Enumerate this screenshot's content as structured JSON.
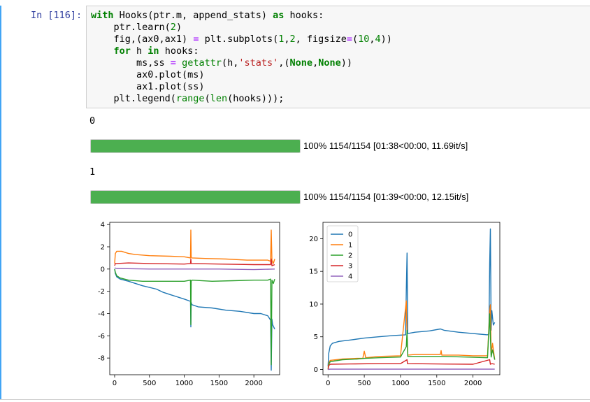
{
  "cell": {
    "prompt": "In [116]:",
    "code_lines": [
      [
        [
          "kw",
          "with"
        ],
        [
          "p",
          " Hooks(ptr.m, append_stats) "
        ],
        [
          "kw",
          "as"
        ],
        [
          "p",
          " hooks:"
        ]
      ],
      [
        [
          "p",
          "    ptr.learn("
        ],
        [
          "num",
          "2"
        ],
        [
          "p",
          ")"
        ]
      ],
      [
        [
          "p",
          "    fig,(ax0,ax1) "
        ],
        [
          "op",
          "="
        ],
        [
          "p",
          " plt.subplots("
        ],
        [
          "num",
          "1"
        ],
        [
          "p",
          ","
        ],
        [
          "num",
          "2"
        ],
        [
          "p",
          ", figsize"
        ],
        [
          "op",
          "="
        ],
        [
          "p",
          "("
        ],
        [
          "num",
          "10"
        ],
        [
          "p",
          ","
        ],
        [
          "num",
          "4"
        ],
        [
          "p",
          "))"
        ]
      ],
      [
        [
          "p",
          "    "
        ],
        [
          "kw",
          "for"
        ],
        [
          "p",
          " h "
        ],
        [
          "kw",
          "in"
        ],
        [
          "p",
          " hooks:"
        ]
      ],
      [
        [
          "p",
          "        ms,ss "
        ],
        [
          "op",
          "="
        ],
        [
          "p",
          " "
        ],
        [
          "bi",
          "getattr"
        ],
        [
          "p",
          "(h,"
        ],
        [
          "str",
          "'stats'"
        ],
        [
          "p",
          ",("
        ],
        [
          "kw",
          "None"
        ],
        [
          "p",
          ","
        ],
        [
          "kw",
          "None"
        ],
        [
          "p",
          "))"
        ]
      ],
      [
        [
          "p",
          "        ax0.plot(ms)"
        ]
      ],
      [
        [
          "p",
          "        ax1.plot(ss)"
        ]
      ],
      [
        [
          "p",
          "    plt.legend("
        ],
        [
          "bi",
          "range"
        ],
        [
          "p",
          "("
        ],
        [
          "bi",
          "len"
        ],
        [
          "p",
          "(hooks)));"
        ]
      ]
    ]
  },
  "outputs": {
    "epoch0_label": "0",
    "progress0": {
      "fraction": 1.0,
      "label": "100% 1154/1154 [01:38<00:00, 11.69it/s]"
    },
    "epoch1_label": "1",
    "progress1": {
      "fraction": 1.0,
      "label": "100% 1154/1154 [01:39<00:00, 12.15it/s]"
    }
  },
  "colors": {
    "progress_fill": "#4caf50",
    "cell_accent": "#42a5f5"
  },
  "chart_data": [
    {
      "type": "line",
      "xlim": [
        -70,
        2370
      ],
      "ylim": [
        -9.5,
        4.2
      ],
      "xticks": [
        0,
        500,
        1000,
        1500,
        2000
      ],
      "yticks": [
        4,
        2,
        0,
        -2,
        -4,
        -6,
        -8
      ],
      "series": [
        {
          "color": "#1f77b4",
          "x": [
            0,
            10,
            30,
            80,
            200,
            400,
            600,
            700,
            800,
            1000,
            1090,
            1095,
            1100,
            1110,
            1200,
            1400,
            1600,
            1800,
            2000,
            2100,
            2200,
            2240,
            2250,
            2260,
            2270,
            2300
          ],
          "y": [
            0,
            -0.4,
            -0.7,
            -0.9,
            -1.1,
            -1.5,
            -1.8,
            -2.1,
            -2.3,
            -2.7,
            -2.9,
            -5.2,
            -3.0,
            -3.2,
            -3.4,
            -3.5,
            -3.7,
            -3.8,
            -4.0,
            -4.0,
            -4.2,
            -4.6,
            -9.1,
            -4.5,
            -5.0,
            -5.4
          ]
        },
        {
          "color": "#ff7f0e",
          "x": [
            0,
            10,
            30,
            100,
            200,
            300,
            500,
            800,
            1000,
            1090,
            1095,
            1100,
            1110,
            1300,
            1600,
            1900,
            2200,
            2240,
            2250,
            2260,
            2280,
            2300
          ],
          "y": [
            0.5,
            1.4,
            1.6,
            1.6,
            1.4,
            1.3,
            1.2,
            1.15,
            1.1,
            1.0,
            3.5,
            1.1,
            1.0,
            0.95,
            0.9,
            0.8,
            0.8,
            0.7,
            3.5,
            0.8,
            0.5,
            0.9
          ]
        },
        {
          "color": "#2ca02c",
          "x": [
            0,
            10,
            30,
            80,
            200,
            400,
            700,
            1000,
            1090,
            1095,
            1100,
            1110,
            1400,
            1700,
            2000,
            2200,
            2240,
            2250,
            2260,
            2280,
            2300
          ],
          "y": [
            0,
            -0.3,
            -0.6,
            -0.8,
            -1.0,
            -1.1,
            -1.1,
            -1.1,
            -1.0,
            -5.0,
            -1.1,
            -1.0,
            -1.1,
            -1.05,
            -1.0,
            -1.0,
            -0.9,
            -8.6,
            -1.0,
            -1.3,
            -0.9
          ]
        },
        {
          "color": "#d62728",
          "x": [
            0,
            10,
            30,
            200,
            500,
            1000,
            1090,
            1095,
            1100,
            1500,
            2000,
            2240,
            2250,
            2260,
            2300
          ],
          "y": [
            0.3,
            0.5,
            0.5,
            0.55,
            0.5,
            0.45,
            0.5,
            0.9,
            0.5,
            0.45,
            0.4,
            0.4,
            0.9,
            0.3,
            0.4
          ]
        },
        {
          "color": "#9467bd",
          "x": [
            0,
            30,
            500,
            1000,
            1500,
            2000,
            2300
          ],
          "y": [
            0.1,
            0.05,
            0.0,
            0.0,
            0.0,
            -0.05,
            0.0
          ]
        }
      ]
    },
    {
      "type": "line",
      "xlim": [
        -70,
        2370
      ],
      "ylim": [
        -0.8,
        22.5
      ],
      "xticks": [
        0,
        500,
        1000,
        1500,
        2000
      ],
      "yticks": [
        0,
        5,
        10,
        15,
        20
      ],
      "legend_position": "top-left",
      "series": [
        {
          "name": "0",
          "color": "#1f77b4",
          "x": [
            0,
            10,
            30,
            60,
            150,
            300,
            500,
            700,
            900,
            1070,
            1080,
            1090,
            1100,
            1200,
            1400,
            1550,
            1600,
            1800,
            2000,
            2100,
            2200,
            2220,
            2230,
            2240,
            2250,
            2260,
            2280,
            2300
          ],
          "y": [
            0.5,
            2.5,
            3.6,
            4.0,
            4.3,
            4.5,
            4.8,
            5.0,
            5.2,
            5.3,
            12,
            17.8,
            5.5,
            5.7,
            5.9,
            6.2,
            6.0,
            5.7,
            5.5,
            5.4,
            5.3,
            5.4,
            16.2,
            21.5,
            6.0,
            9.0,
            6.8,
            7.2
          ]
        },
        {
          "name": "1",
          "color": "#ff7f0e",
          "x": [
            0,
            10,
            30,
            200,
            400,
            480,
            500,
            520,
            700,
            1000,
            1080,
            1090,
            1100,
            1200,
            1400,
            1550,
            1560,
            1570,
            1800,
            2000,
            2200,
            2230,
            2240,
            2250,
            2270,
            2300
          ],
          "y": [
            0.3,
            1.0,
            1.4,
            1.6,
            1.7,
            1.7,
            2.8,
            1.8,
            2.0,
            2.1,
            10.5,
            5.0,
            2.2,
            2.3,
            2.3,
            2.3,
            2.9,
            2.2,
            2.2,
            2.1,
            2.1,
            9.0,
            9.9,
            2.3,
            4.0,
            1.5
          ]
        },
        {
          "name": "2",
          "color": "#2ca02c",
          "x": [
            0,
            10,
            30,
            200,
            400,
            500,
            700,
            1000,
            1080,
            1090,
            1100,
            1300,
            1600,
            1900,
            2200,
            2230,
            2240,
            2250,
            2270,
            2300
          ],
          "y": [
            0,
            0.8,
            1.2,
            1.5,
            1.6,
            1.7,
            1.8,
            1.9,
            3.5,
            6.0,
            2.0,
            2.0,
            2.0,
            1.9,
            1.8,
            8.5,
            5.0,
            1.9,
            3.0,
            1.5
          ]
        },
        {
          "name": "3",
          "color": "#d62728",
          "x": [
            0,
            10,
            30,
            300,
            700,
            1000,
            1090,
            1095,
            1100,
            1500,
            2000,
            2230,
            2240,
            2260,
            2300
          ],
          "y": [
            0,
            0.6,
            0.8,
            0.85,
            0.9,
            0.9,
            1.5,
            0.9,
            0.9,
            0.85,
            0.8,
            1.5,
            0.8,
            0.9,
            0.8
          ]
        },
        {
          "name": "4",
          "color": "#9467bd",
          "x": [
            0,
            30,
            500,
            1000,
            1500,
            2000,
            2300
          ],
          "y": [
            0,
            0.05,
            0.05,
            0.05,
            0.05,
            0.05,
            0.05
          ]
        }
      ]
    }
  ]
}
